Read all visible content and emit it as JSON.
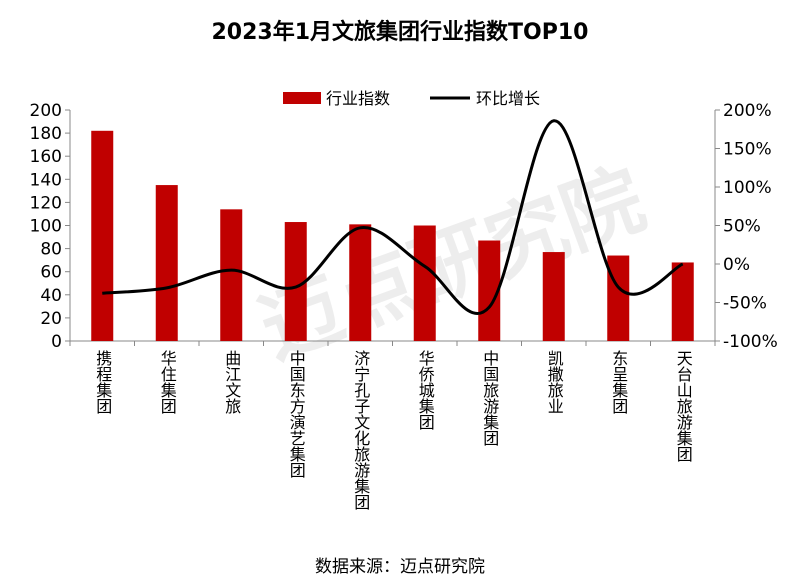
{
  "chart_data": {
    "type": "bar+line",
    "title": "2023年1月文旅集团行业指数TOP10",
    "categories": [
      "携程集团",
      "华住集团",
      "曲江文旅",
      "中国东方演艺集团",
      "济宁孔子文化旅游集团",
      "华侨城集团",
      "中国旅游集团",
      "凯撒旅业",
      "东呈集团",
      "天台山旅游集团"
    ],
    "series": [
      {
        "name": "行业指数",
        "type": "bar",
        "axis": "left",
        "color": "#C00000",
        "values": [
          182,
          135,
          114,
          103,
          101,
          100,
          87,
          77,
          74,
          68
        ]
      },
      {
        "name": "环比增长",
        "type": "line",
        "axis": "right",
        "color": "#000000",
        "smooth": true,
        "values": [
          -38,
          -31,
          -8,
          -30,
          47,
          -3,
          -56,
          186,
          -30,
          0
        ]
      }
    ],
    "left_axis": {
      "ylim": [
        0,
        200
      ],
      "ticks": [
        "0",
        "20",
        "40",
        "60",
        "80",
        "100",
        "120",
        "140",
        "160",
        "180",
        "200"
      ]
    },
    "right_axis": {
      "ylim": [
        -100,
        200
      ],
      "ticks": [
        "-100%",
        "-50%",
        "0%",
        "50%",
        "100%",
        "150%",
        "200%"
      ]
    },
    "legend": "top-center",
    "grid": false
  },
  "source": "数据来源：迈点研究院",
  "watermark": "迈点研究院"
}
